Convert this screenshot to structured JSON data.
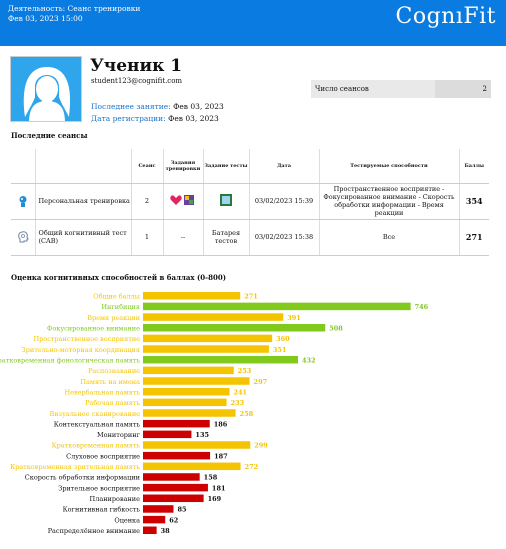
{
  "header": {
    "activity_line": "Деятельность: Сеанс тренировки",
    "date_line": "Фев 03, 2023 15:00",
    "logo": "CognıFit"
  },
  "student": {
    "name": "Ученик 1",
    "email": "student123@cognifit.com",
    "last_session_label": "Последнее занятие:",
    "last_session_value": "Фев 03, 2023",
    "reg_label": "Дата регистрации:",
    "reg_value": "Фев 03, 2023"
  },
  "session_count": {
    "label": "Число сеансов",
    "value": "2"
  },
  "recent": {
    "title": "Последние сеансы",
    "headers": [
      "Сеанс",
      "Задания тренировки",
      "Задание тесты",
      "Дата",
      "Тестируемые способности",
      "Баллы"
    ],
    "rows": [
      {
        "name": "Персональная тренировка",
        "count": "2",
        "tests": "",
        "date": "03/02/2023 15:39",
        "abilities": "Пространственное восприятие - Фокусированное внимание - Скорость обработки информации - Время реакции",
        "score": "354",
        "icon": "brain-person-icon",
        "icon_color": "#1e8fd6"
      },
      {
        "name": "Общий когнитивный тест (CAB)",
        "count": "1",
        "training": "--",
        "tests": "Батарея тестов",
        "date": "03/02/2023 15:38",
        "abilities": "Все",
        "score": "271",
        "icon": "head-icon",
        "icon_color": "#8aa0b8"
      }
    ]
  },
  "chart_title": "Оценка когнитивных способностей в баллах (0-800)",
  "colors": {
    "yellow": "#f5c400",
    "green": "#82c91e",
    "red": "#cc0000",
    "blue": "#0a7be0"
  },
  "chart_data": {
    "type": "bar",
    "orientation": "horizontal",
    "range": [
      0,
      800
    ],
    "categories": [
      "Общие баллы",
      "Ингибиция",
      "Время реакции",
      "Фокусированное внимание",
      "Пространственное восприятие",
      "Зрительно-моторная координация",
      "Кратковременная фонологическая память",
      "Распознавание",
      "Память на имена",
      "Невербальная память",
      "Рабочая память",
      "Визуальное сканирование",
      "Контекстуальная память",
      "Мониторинг",
      "Кратковременная память",
      "Слуховое восприятие",
      "Кратковременная зрительная память",
      "Скорость обработки информации",
      "Зрительное восприятие",
      "Планирование",
      "Когнитивная гибкость",
      "Оценка",
      "Распределённое внимание"
    ],
    "values": [
      271,
      746,
      391,
      508,
      360,
      351,
      432,
      253,
      297,
      241,
      233,
      258,
      186,
      135,
      299,
      187,
      272,
      158,
      181,
      169,
      85,
      62,
      38
    ],
    "levels": [
      "yellow",
      "green",
      "yellow",
      "green",
      "yellow",
      "yellow",
      "green",
      "yellow",
      "yellow",
      "yellow",
      "yellow",
      "yellow",
      "red",
      "red",
      "yellow",
      "red",
      "yellow",
      "red",
      "red",
      "red",
      "red",
      "red",
      "red"
    ]
  }
}
